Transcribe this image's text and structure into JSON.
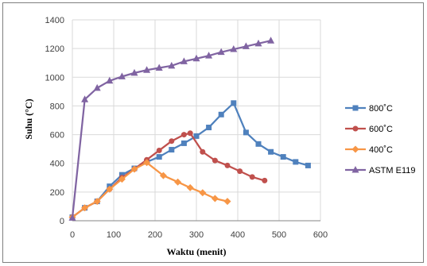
{
  "chart_data": {
    "type": "line",
    "xlabel": "Waktu (menit)",
    "ylabel": "Suhu (°C)",
    "xlim": [
      0,
      600
    ],
    "ylim": [
      0,
      1400
    ],
    "xticks": [
      0,
      100,
      200,
      300,
      400,
      500,
      600
    ],
    "yticks": [
      0,
      200,
      400,
      600,
      800,
      1000,
      1200,
      1400
    ],
    "grid": "both",
    "legend_position": "right",
    "series": [
      {
        "name": "800˚C",
        "color": "#4f81bd",
        "marker": "square",
        "x": [
          0,
          30,
          60,
          90,
          120,
          150,
          180,
          210,
          240,
          270,
          300,
          330,
          360,
          390,
          420,
          450,
          480,
          510,
          540,
          570
        ],
        "y": [
          25,
          90,
          135,
          240,
          320,
          365,
          410,
          445,
          495,
          540,
          590,
          650,
          740,
          820,
          615,
          535,
          480,
          445,
          410,
          385
        ]
      },
      {
        "name": "600˚C",
        "color": "#c0504d",
        "marker": "circle",
        "x": [
          0,
          30,
          60,
          90,
          120,
          150,
          180,
          210,
          240,
          270,
          285,
          315,
          345,
          375,
          405,
          435,
          465
        ],
        "y": [
          25,
          90,
          135,
          220,
          300,
          360,
          425,
          490,
          555,
          600,
          610,
          480,
          420,
          385,
          345,
          305,
          280
        ]
      },
      {
        "name": "400˚C",
        "color": "#f79646",
        "marker": "diamond",
        "x": [
          0,
          30,
          60,
          90,
          120,
          150,
          180,
          220,
          255,
          285,
          315,
          345,
          375
        ],
        "y": [
          25,
          90,
          135,
          220,
          290,
          360,
          405,
          315,
          270,
          230,
          195,
          155,
          135
        ]
      },
      {
        "name": "ASTM E119",
        "color": "#8064a2",
        "marker": "triangle",
        "x": [
          0,
          30,
          60,
          90,
          120,
          150,
          180,
          210,
          240,
          270,
          300,
          330,
          360,
          390,
          420,
          450,
          480
        ],
        "y": [
          20,
          845,
          925,
          975,
          1005,
          1030,
          1050,
          1065,
          1080,
          1110,
          1130,
          1150,
          1175,
          1195,
          1215,
          1235,
          1255
        ]
      }
    ]
  }
}
